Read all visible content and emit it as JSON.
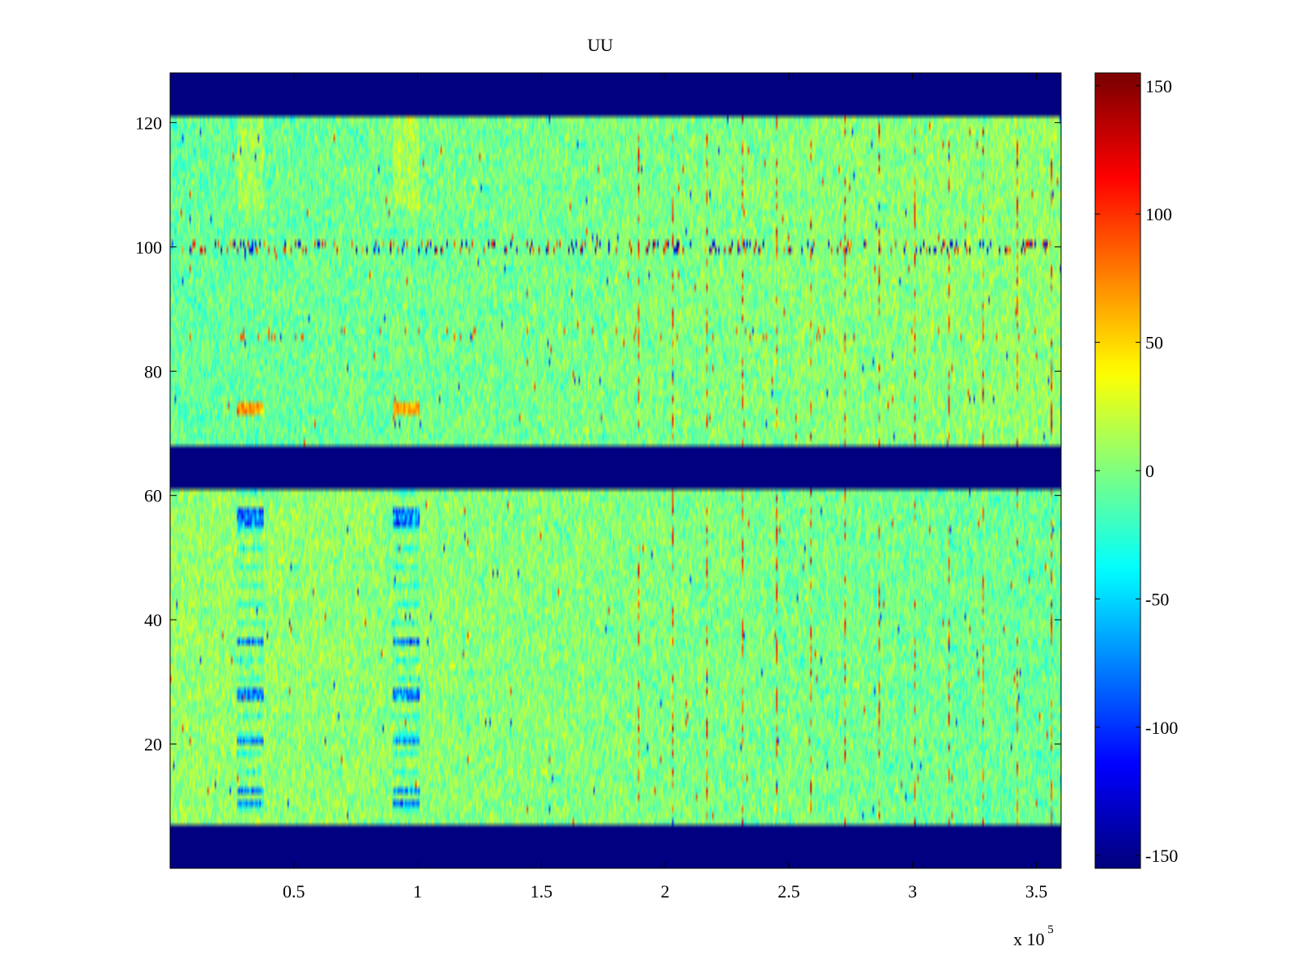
{
  "chart_data": {
    "type": "heatmap",
    "title": "UU",
    "xlabel": "",
    "ylabel": "",
    "x_exponent_label": "x 10",
    "x_exponent": "5",
    "x_range": [
      0,
      360000
    ],
    "y_range": [
      0,
      128
    ],
    "x_ticks": [
      {
        "value": 0.5,
        "label": "0.5"
      },
      {
        "value": 1,
        "label": "1"
      },
      {
        "value": 1.5,
        "label": "1.5"
      },
      {
        "value": 2,
        "label": "2"
      },
      {
        "value": 2.5,
        "label": "2.5"
      },
      {
        "value": 3,
        "label": "3"
      },
      {
        "value": 3.5,
        "label": "3.5"
      }
    ],
    "y_ticks": [
      {
        "value": 20,
        "label": "20"
      },
      {
        "value": 40,
        "label": "40"
      },
      {
        "value": 60,
        "label": "60"
      },
      {
        "value": 80,
        "label": "80"
      },
      {
        "value": 100,
        "label": "100"
      },
      {
        "value": 120,
        "label": "120"
      }
    ],
    "colorbar": {
      "colormap": "jet",
      "range": [
        -155,
        155
      ],
      "ticks": [
        {
          "value": 150,
          "label": "150"
        },
        {
          "value": 100,
          "label": "100"
        },
        {
          "value": 50,
          "label": "50"
        },
        {
          "value": 0,
          "label": "0"
        },
        {
          "value": -50,
          "label": "-50"
        },
        {
          "value": -100,
          "label": "-100"
        },
        {
          "value": -150,
          "label": "-150"
        }
      ]
    },
    "masked_bands_y": [
      [
        0,
        7
      ],
      [
        61,
        68
      ],
      [
        121,
        128
      ]
    ],
    "data_bands_y": [
      [
        7,
        61
      ],
      [
        68,
        121
      ]
    ]
  }
}
